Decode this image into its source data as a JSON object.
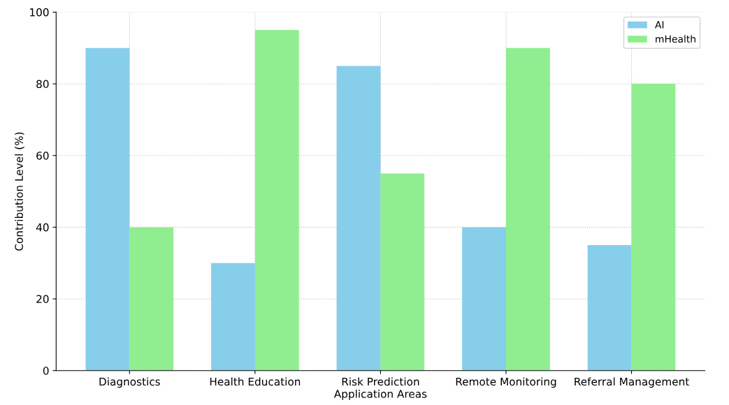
{
  "chart_data": {
    "type": "bar",
    "xlabel": "Application Areas",
    "ylabel": "Contribution Level (%)",
    "categories": [
      "Diagnostics",
      "Health Education",
      "Risk Prediction",
      "Remote Monitoring",
      "Referral Management"
    ],
    "series": [
      {
        "name": "AI",
        "color": "#87ceeb",
        "values": [
          90,
          30,
          85,
          40,
          35
        ]
      },
      {
        "name": "mHealth",
        "color": "#90ee90",
        "values": [
          40,
          95,
          55,
          90,
          80
        ]
      }
    ],
    "ylim": [
      0,
      100
    ],
    "yticks": [
      0,
      20,
      40,
      60,
      80,
      100
    ],
    "grid": true,
    "legend": "top right"
  }
}
